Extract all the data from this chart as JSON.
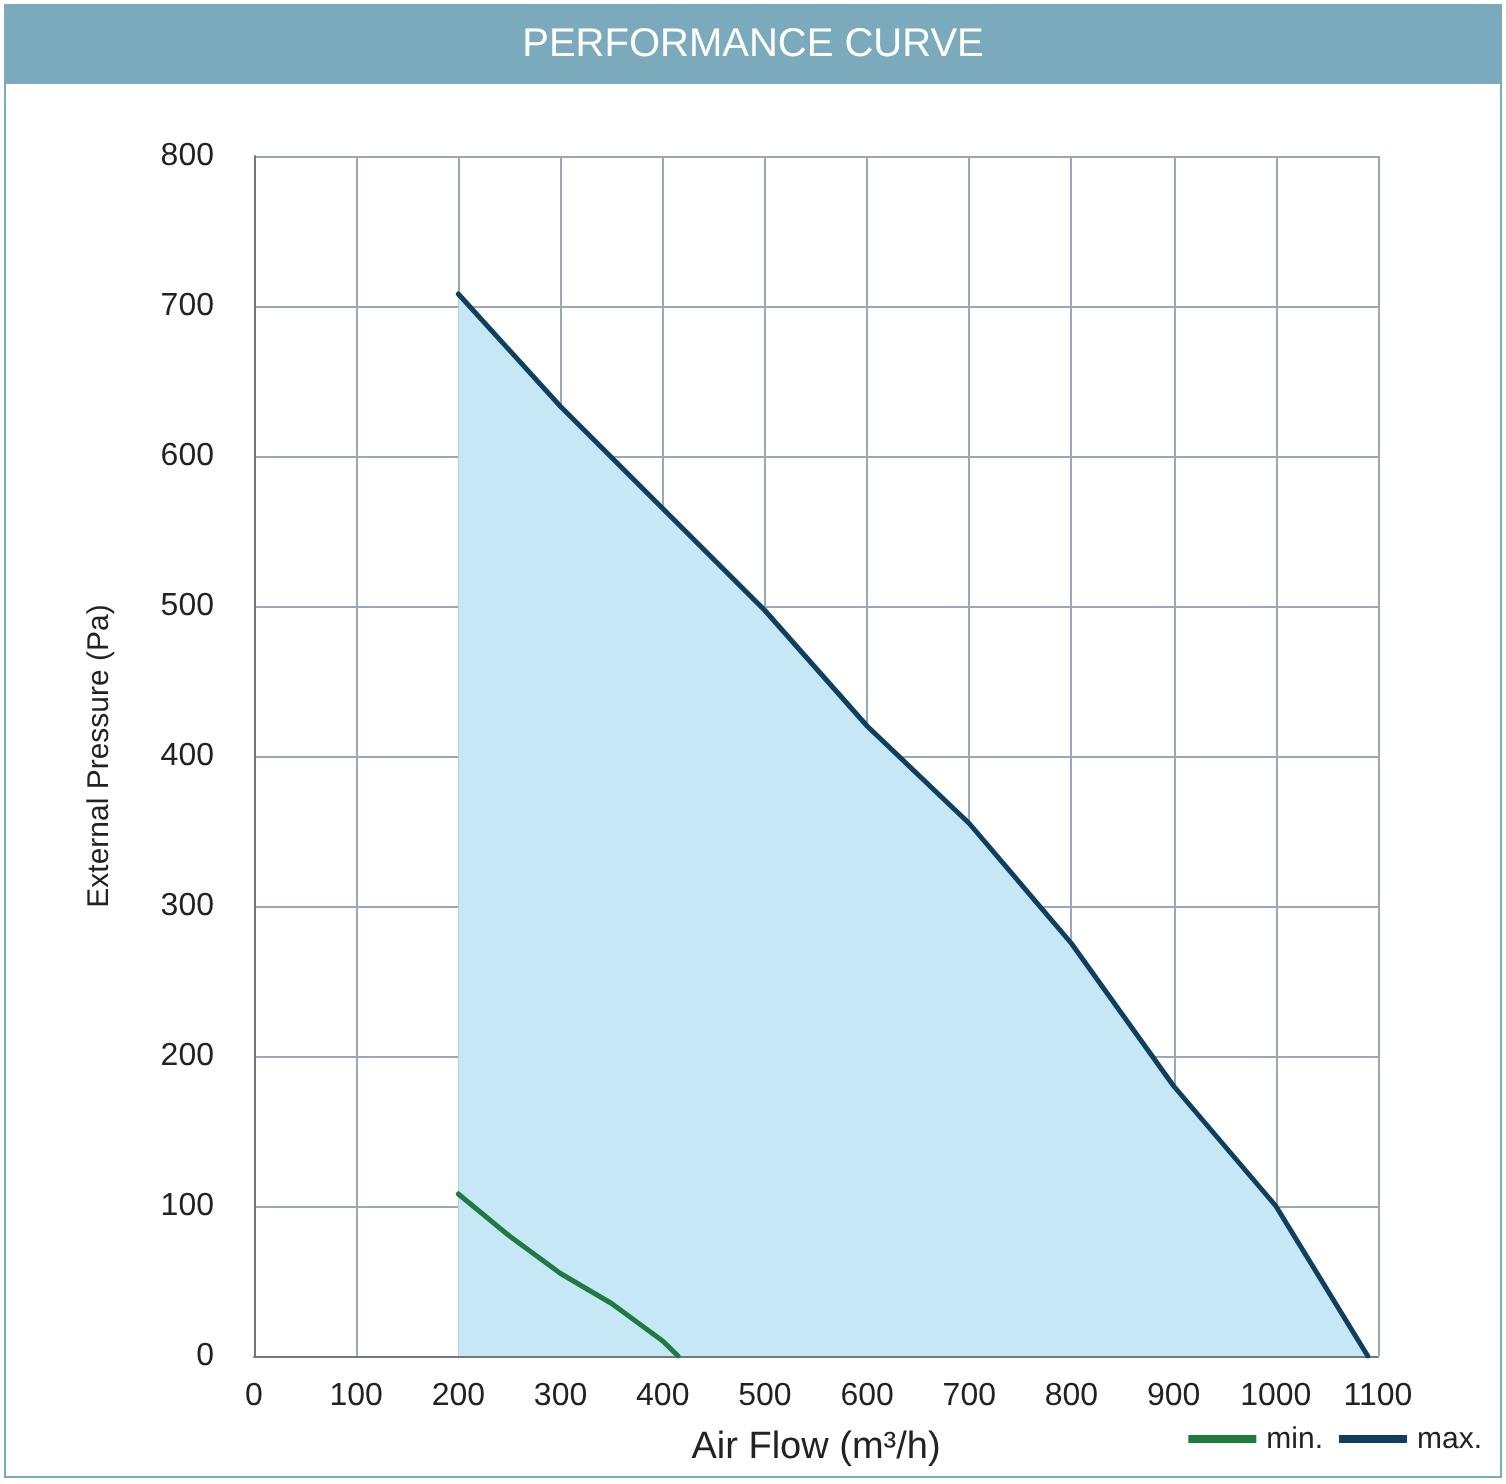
{
  "chart_data": {
    "type": "line",
    "title": "PERFORMANCE CURVE",
    "xlabel": "Air Flow (m³/h)",
    "ylabel": "External Pressure (Pa)",
    "xlim": [
      0,
      1100
    ],
    "xticks": [
      0,
      100,
      200,
      300,
      400,
      500,
      600,
      700,
      800,
      900,
      1000,
      1100
    ],
    "ylim": [
      0,
      800
    ],
    "yticks": [
      0,
      100,
      200,
      300,
      400,
      500,
      600,
      700,
      800
    ],
    "grid": true,
    "legend": "bottom right",
    "marker": "none",
    "line_style": "solid",
    "series": [
      {
        "name": "min.",
        "color": "#1f7a3f",
        "x": [
          200,
          250,
          300,
          350,
          400,
          415
        ],
        "values": [
          108,
          80,
          55,
          35,
          10,
          0
        ]
      },
      {
        "name": "max.",
        "type": "area",
        "color": "#0e3f5e",
        "x": [
          200,
          300,
          400,
          500,
          600,
          700,
          800,
          900,
          950,
          1000,
          1090
        ],
        "values": [
          708,
          633,
          565,
          497,
          420,
          355,
          275,
          180,
          140,
          100,
          0
        ]
      }
    ]
  }
}
